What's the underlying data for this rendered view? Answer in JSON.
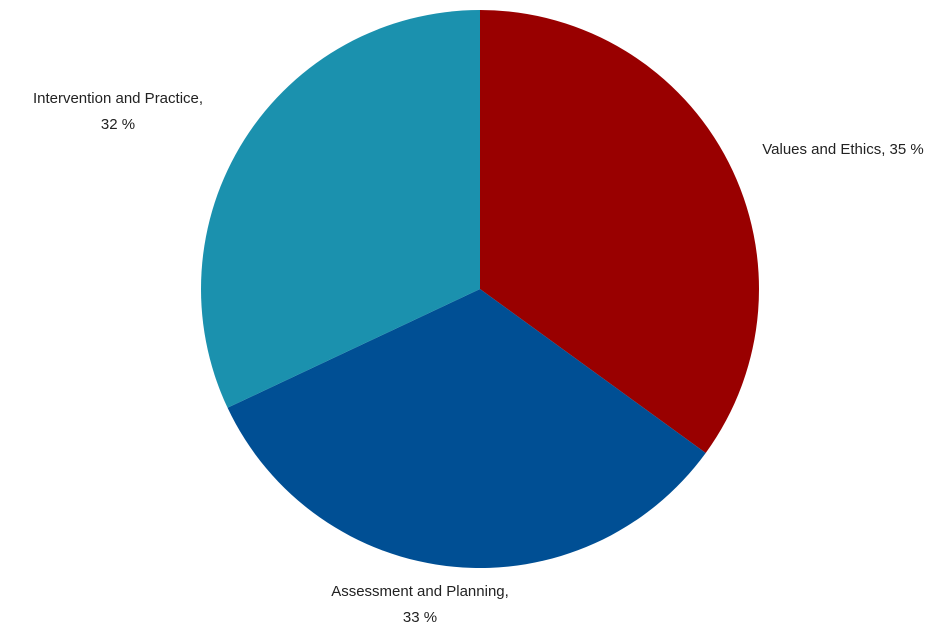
{
  "chart_data": {
    "type": "pie",
    "title": "",
    "slices": [
      {
        "label": "Values and Ethics",
        "value": 35,
        "value_text": "35 %",
        "color": "#990000"
      },
      {
        "label": "Assessment and Planning",
        "value": 33,
        "value_text": "33 %",
        "color": "#004f94"
      },
      {
        "label": "Intervention and Practice",
        "value": 32,
        "value_text": "32 %",
        "color": "#1b91ae"
      }
    ],
    "legend": "none"
  }
}
